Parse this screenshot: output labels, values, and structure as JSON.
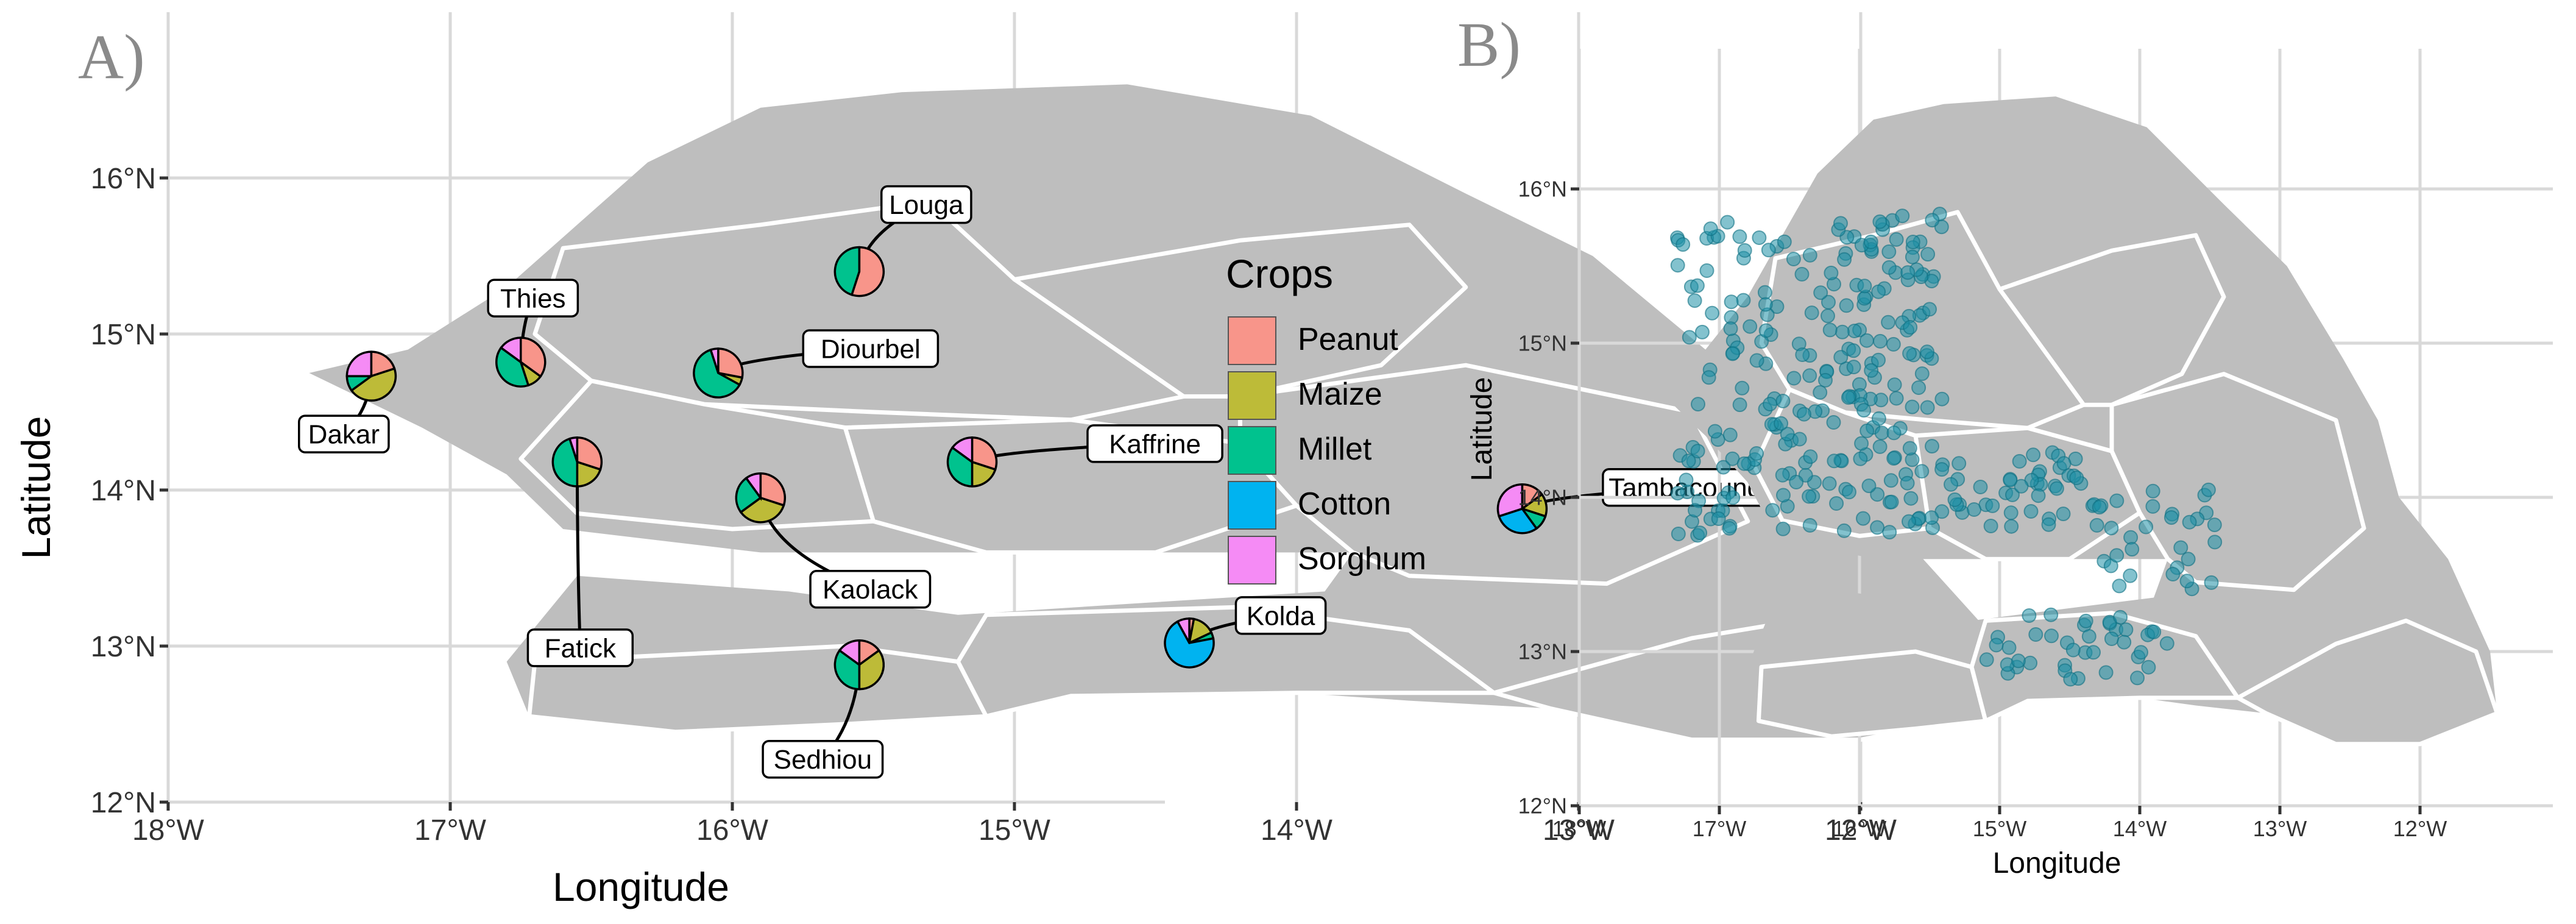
{
  "panel_a": {
    "letter": "A)",
    "x_label": "Longitude",
    "y_label": "Latitude",
    "x_ticks": [
      "18°W",
      "17°W",
      "16°W",
      "15°W",
      "14°W",
      "13°W",
      "12°W"
    ],
    "y_ticks": [
      "12°N",
      "13°N",
      "14°N",
      "15°N",
      "16°N"
    ],
    "regions": [
      {
        "name": "Louga",
        "lon": -15.55,
        "lat": 15.4,
        "shares": [
          0.55,
          0,
          0.45,
          0,
          0
        ]
      },
      {
        "name": "Thies",
        "lon": -16.75,
        "lat": 14.82,
        "shares": [
          0.35,
          0.1,
          0.4,
          0,
          0.15
        ]
      },
      {
        "name": "Diourbel",
        "lon": -16.05,
        "lat": 14.75,
        "shares": [
          0.28,
          0.05,
          0.62,
          0,
          0.05
        ]
      },
      {
        "name": "Dakar",
        "lon": -17.28,
        "lat": 14.73,
        "shares": [
          0.2,
          0.45,
          0.1,
          0,
          0.25
        ]
      },
      {
        "name": "Fatick",
        "lon": -16.55,
        "lat": 14.18,
        "shares": [
          0.3,
          0.2,
          0.45,
          0,
          0.05
        ]
      },
      {
        "name": "Kaffrine",
        "lon": -15.15,
        "lat": 14.18,
        "shares": [
          0.3,
          0.2,
          0.35,
          0,
          0.15
        ]
      },
      {
        "name": "Kaolack",
        "lon": -15.9,
        "lat": 13.95,
        "shares": [
          0.3,
          0.35,
          0.25,
          0,
          0.1
        ]
      },
      {
        "name": "Tambacounda",
        "lon": -13.2,
        "lat": 13.88,
        "shares": [
          0.15,
          0.15,
          0.1,
          0.3,
          0.3
        ]
      },
      {
        "name": "Kolda",
        "lon": -14.38,
        "lat": 13.02,
        "shares": [
          0.03,
          0.15,
          0.04,
          0.7,
          0.08
        ]
      },
      {
        "name": "Sedhiou",
        "lon": -15.55,
        "lat": 12.88,
        "shares": [
          0.15,
          0.35,
          0.35,
          0,
          0.15
        ]
      }
    ],
    "legend": {
      "title": "Crops",
      "items": [
        {
          "label": "Peanut",
          "color": "#F8958A"
        },
        {
          "label": "Maize",
          "color": "#BDBB38"
        },
        {
          "label": "Millet",
          "color": "#00C28E"
        },
        {
          "label": "Cotton",
          "color": "#00B3F0"
        },
        {
          "label": "Sorghum",
          "color": "#F58BF5"
        }
      ]
    }
  },
  "panel_b": {
    "letter": "B)",
    "x_label": "Longitude",
    "y_label": "Latitude",
    "x_ticks": [
      "18°W",
      "17°W",
      "16°W",
      "15°W",
      "14°W",
      "13°W",
      "12°W"
    ],
    "y_ticks": [
      "12°N",
      "13°N",
      "14°N",
      "15°N",
      "16°N"
    ],
    "point_color": "#1D8FA6"
  }
}
